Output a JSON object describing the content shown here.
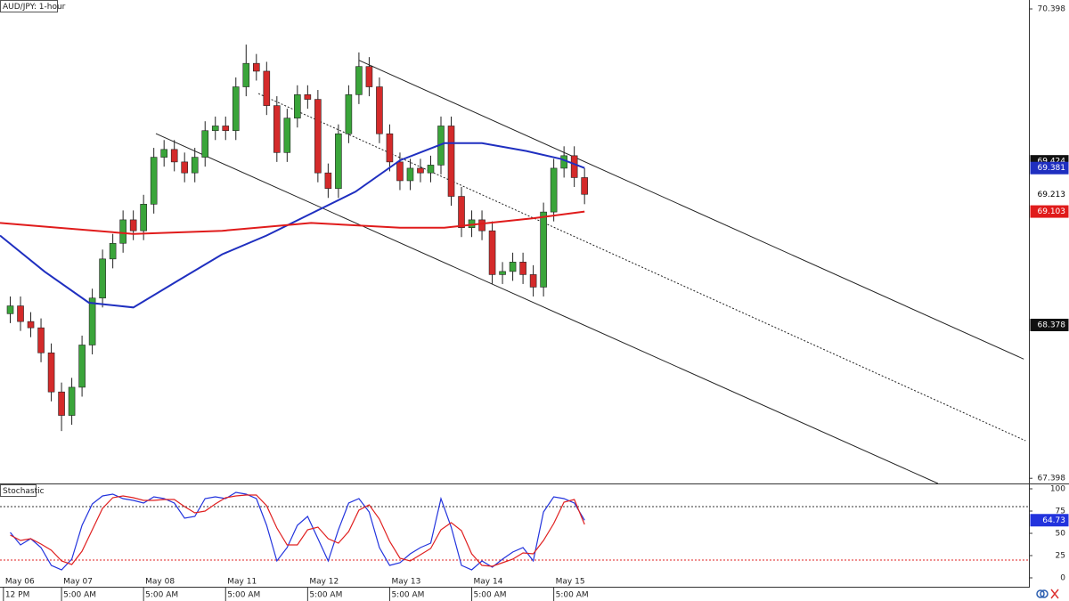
{
  "chart_data": [
    {
      "type": "candlestick",
      "title": "AUD/JPY: 1-hour",
      "xlim": [
        -1,
        300
      ],
      "ylim": [
        67.365,
        70.455
      ],
      "yticks": [
        67.398,
        70.398
      ],
      "up_color": "#3aa53a",
      "down_color": "#d42a2a",
      "candles": {
        "x": [
          2,
          5,
          8,
          11,
          14,
          17,
          20,
          23,
          26,
          29,
          32,
          35,
          38,
          41,
          44,
          47,
          50,
          53,
          56,
          59,
          62,
          65,
          68,
          71,
          74,
          77,
          80,
          83,
          86,
          89,
          92,
          95,
          98,
          101,
          104,
          107,
          110,
          113,
          116,
          119,
          122,
          125,
          128,
          131,
          134,
          137,
          140,
          143,
          146,
          149,
          152,
          155,
          158,
          161,
          164,
          167,
          170
        ],
        "open": [
          68.45,
          68.5,
          68.4,
          68.36,
          68.2,
          67.95,
          67.8,
          67.98,
          68.25,
          68.55,
          68.8,
          68.9,
          69.05,
          68.98,
          69.15,
          69.45,
          69.5,
          69.42,
          69.35,
          69.45,
          69.62,
          69.65,
          69.62,
          69.9,
          70.05,
          70.0,
          69.78,
          69.48,
          69.7,
          69.85,
          69.82,
          69.35,
          69.25,
          69.6,
          69.85,
          70.03,
          69.9,
          69.6,
          69.42,
          69.3,
          69.38,
          69.35,
          69.4,
          69.65,
          69.2,
          69.0,
          69.05,
          68.98,
          68.7,
          68.72,
          68.78,
          68.7,
          68.62,
          69.1,
          69.38,
          69.46,
          69.32
        ],
        "high": [
          68.56,
          68.56,
          68.46,
          68.42,
          68.26,
          68.01,
          68.04,
          68.31,
          68.61,
          68.86,
          68.96,
          69.11,
          69.11,
          69.21,
          69.51,
          69.56,
          69.56,
          69.48,
          69.51,
          69.68,
          69.71,
          69.71,
          69.96,
          70.17,
          70.11,
          70.06,
          69.84,
          69.76,
          69.91,
          69.91,
          69.88,
          69.41,
          69.66,
          69.91,
          70.12,
          70.09,
          69.96,
          69.66,
          69.48,
          69.44,
          69.44,
          69.46,
          69.71,
          69.71,
          69.26,
          69.11,
          69.11,
          69.04,
          68.78,
          68.84,
          68.84,
          68.76,
          69.16,
          69.44,
          69.52,
          69.52,
          69.38
        ],
        "low": [
          68.39,
          68.34,
          68.3,
          68.14,
          67.89,
          67.7,
          67.74,
          67.92,
          68.19,
          68.49,
          68.74,
          68.84,
          68.92,
          68.92,
          69.09,
          69.39,
          69.36,
          69.29,
          69.29,
          69.39,
          69.56,
          69.56,
          69.56,
          69.84,
          69.94,
          69.72,
          69.42,
          69.42,
          69.64,
          69.76,
          69.29,
          69.19,
          69.19,
          69.54,
          69.79,
          69.84,
          69.54,
          69.36,
          69.24,
          69.24,
          69.29,
          69.29,
          69.34,
          69.14,
          68.94,
          68.94,
          68.92,
          68.64,
          68.64,
          68.66,
          68.64,
          68.56,
          68.56,
          69.04,
          69.32,
          69.26,
          69.15
        ],
        "close": [
          68.5,
          68.4,
          68.36,
          68.2,
          67.95,
          67.8,
          67.98,
          68.25,
          68.55,
          68.8,
          68.9,
          69.05,
          68.98,
          69.15,
          69.45,
          69.5,
          69.42,
          69.35,
          69.45,
          69.62,
          69.65,
          69.62,
          69.9,
          70.05,
          70.0,
          69.78,
          69.48,
          69.7,
          69.85,
          69.82,
          69.35,
          69.25,
          69.6,
          69.85,
          70.03,
          69.9,
          69.6,
          69.42,
          69.3,
          69.38,
          69.35,
          69.4,
          69.65,
          69.2,
          69.0,
          69.05,
          68.98,
          68.7,
          68.72,
          68.78,
          68.7,
          68.62,
          69.1,
          69.38,
          69.46,
          69.32,
          69.213
        ]
      },
      "series": [
        {
          "color": "#1f2fc0",
          "x": [
            -1,
            12,
            25,
            38,
            51,
            64,
            77,
            90,
            103,
            116,
            129,
            140,
            153,
            163,
            170
          ],
          "values": [
            68.95,
            68.72,
            68.52,
            68.49,
            68.66,
            68.83,
            68.95,
            69.09,
            69.23,
            69.43,
            69.54,
            69.54,
            69.49,
            69.44,
            69.381
          ]
        },
        {
          "color": "#e01b1b",
          "x": [
            -1,
            38,
            64,
            90,
            116,
            129,
            142,
            155,
            170
          ],
          "values": [
            69.03,
            68.96,
            68.98,
            69.03,
            69.0,
            69.0,
            69.03,
            69.06,
            69.103
          ]
        }
      ],
      "trendlines": [
        {
          "x": [
            104,
            298.5
          ],
          "y": [
            70.07,
            68.16
          ],
          "dashed": false
        },
        {
          "x": [
            74.6,
            299
          ],
          "y": [
            69.857,
            67.638
          ],
          "dashed": true
        },
        {
          "x": [
            44.6,
            273.4
          ],
          "y": [
            69.601,
            67.365
          ],
          "dashed": false
        }
      ],
      "price_tags": [
        {
          "value": 69.424,
          "bg": "#111111",
          "fg": "#ffffff"
        },
        {
          "value": 69.381,
          "bg": "#1f2fc0",
          "fg": "#ffffff"
        },
        {
          "value": 69.213,
          "bg": "#ffffff",
          "fg": "#000000"
        },
        {
          "value": 69.103,
          "bg": "#e01b1b",
          "fg": "#ffffff"
        },
        {
          "value": 68.378,
          "bg": "#111111",
          "fg": "#ffffff"
        }
      ]
    },
    {
      "type": "line",
      "title": "Stochastic",
      "xlim": [
        -1,
        300
      ],
      "ylim": [
        -8,
        104
      ],
      "yticks": [
        0,
        25,
        50,
        75,
        100
      ],
      "xticks": [
        {
          "value": 0,
          "label": "May 06"
        },
        {
          "value": 17,
          "label": "May 07"
        },
        {
          "value": 41,
          "label": "May 08"
        },
        {
          "value": 65,
          "label": "May 11"
        },
        {
          "value": 89,
          "label": "May 12"
        },
        {
          "value": 113,
          "label": "May 13"
        },
        {
          "value": 137,
          "label": "May 14"
        },
        {
          "value": 161,
          "label": "May 15"
        }
      ],
      "xtick_sublabels": [
        "12 PM",
        "5:00 AM",
        "5:00 AM",
        "5:00 AM",
        "5:00 AM",
        "5:00 AM",
        "5:00 AM",
        "5:00 AM"
      ],
      "levels": [
        {
          "value": 80,
          "color": "#333333"
        },
        {
          "value": 20,
          "color": "#e02020"
        }
      ],
      "x": [
        2,
        5,
        8,
        11,
        14,
        17,
        20,
        23,
        26,
        29,
        32,
        35,
        38,
        41,
        44,
        47,
        50,
        53,
        56,
        59,
        62,
        65,
        68,
        71,
        74,
        77,
        80,
        83,
        86,
        89,
        92,
        95,
        98,
        101,
        104,
        107,
        110,
        113,
        116,
        119,
        122,
        125,
        128,
        131,
        134,
        137,
        140,
        143,
        146,
        149,
        152,
        155,
        158,
        161,
        164,
        167,
        170
      ],
      "series": [
        {
          "color": "#2233dd",
          "values": [
            51,
            37,
            44,
            34,
            14,
            9,
            21,
            59,
            83,
            92,
            94,
            89,
            87,
            84,
            91,
            89,
            84,
            67,
            69,
            89,
            91,
            89,
            96,
            94,
            89,
            59,
            19,
            34,
            59,
            69,
            44,
            19,
            54,
            84,
            89,
            74,
            34,
            14,
            17,
            27,
            34,
            39,
            89,
            57,
            14,
            9,
            19,
            12,
            21,
            29,
            34,
            19,
            74,
            91,
            89,
            84,
            64.73
          ]
        },
        {
          "color": "#e02020",
          "values": [
            48,
            42,
            44,
            38,
            31,
            19,
            15,
            30,
            54,
            78,
            90,
            92,
            90,
            87,
            87,
            88,
            88,
            80,
            73,
            75,
            83,
            90,
            92,
            93,
            93,
            81,
            56,
            37,
            37,
            54,
            57,
            44,
            39,
            52,
            76,
            82,
            66,
            41,
            22,
            19,
            26,
            33,
            54,
            62,
            53,
            27,
            14,
            13,
            17,
            21,
            28,
            27,
            42,
            61,
            85,
            88,
            60
          ]
        }
      ],
      "price_tags": [
        {
          "value": 64.73,
          "bg": "#2233dd",
          "fg": "#ffffff"
        }
      ]
    }
  ]
}
